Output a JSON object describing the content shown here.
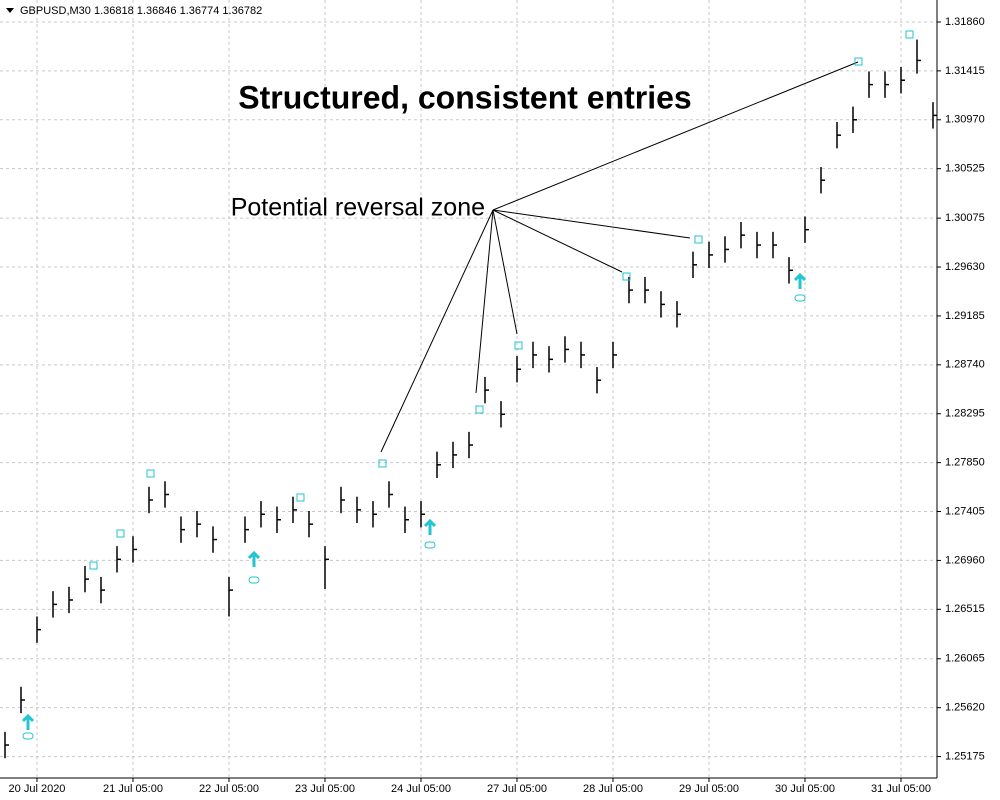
{
  "header": "GBPUSD,M30  1.36818 1.36846 1.36774 1.36782",
  "chart_data": {
    "type": "ohlc",
    "title": "Structured, consistent entries",
    "annotations": [
      "Potential reversal zone"
    ],
    "color": "#000000",
    "grid": true,
    "ylim": [
      1.2498,
      1.3206
    ],
    "yticks": [
      {
        "value": 1.3186,
        "label": "1.31860"
      },
      1.31415,
      {
        "value": 1.3097,
        "label": "1.30970"
      },
      1.30525,
      1.30075,
      {
        "value": 1.2963,
        "label": "1.29630"
      },
      1.29185,
      {
        "value": 1.2874,
        "label": "1.28740"
      },
      1.28295,
      {
        "value": 1.2785,
        "label": "1.27850"
      },
      1.27405,
      {
        "value": 1.2696,
        "label": "1.26960"
      },
      1.26515,
      1.26065,
      {
        "value": 1.2562,
        "label": "1.25620"
      },
      1.25175
    ],
    "categories": [
      null,
      null,
      "20 Jul 2020",
      null,
      null,
      null,
      null,
      null,
      "21 Jul 05:00",
      null,
      null,
      null,
      null,
      null,
      "22 Jul 05:00",
      null,
      null,
      null,
      null,
      null,
      "23 Jul 05:00",
      null,
      null,
      null,
      null,
      null,
      "24 Jul 05:00",
      null,
      null,
      null,
      null,
      null,
      "27 Jul 05:00",
      null,
      null,
      null,
      null,
      null,
      "28 Jul 05:00",
      null,
      null,
      null,
      null,
      null,
      "29 Jul 05:00",
      null,
      null,
      null,
      null,
      null,
      "30 Jul 05:00",
      null,
      null,
      null,
      null,
      null,
      "31 Jul 05:00",
      null,
      null
    ],
    "high": [
      1.254,
      1.2581,
      1.2645,
      1.2668,
      1.2672,
      1.2691,
      1.2681,
      1.2709,
      1.2718,
      1.2763,
      1.2768,
      1.2736,
      1.2741,
      1.2727,
      1.2681,
      1.2736,
      1.275,
      1.2745,
      1.2754,
      1.2741,
      1.2709,
      1.2763,
      1.2754,
      1.275,
      1.2768,
      1.2745,
      1.275,
      1.2795,
      1.2804,
      1.2813,
      1.2863,
      1.2841,
      1.2882,
      1.2895,
      1.2891,
      1.29,
      1.2895,
      1.2872,
      1.2895,
      1.2954,
      1.2954,
      1.2941,
      1.2932,
      1.2977,
      1.2986,
      1.2991,
      1.3004,
      1.2995,
      1.2995,
      1.2972,
      1.3009,
      1.3054,
      1.3095,
      1.3109,
      1.3141,
      1.3141,
      1.3145,
      1.317,
      1.3113
    ],
    "low": [
      1.2516,
      1.2557,
      1.2621,
      1.2644,
      1.2648,
      1.2667,
      1.2657,
      1.2685,
      1.2694,
      1.2739,
      1.2744,
      1.2712,
      1.2717,
      1.2703,
      1.2645,
      1.2712,
      1.2726,
      1.2721,
      1.273,
      1.2717,
      1.267,
      1.2739,
      1.273,
      1.2726,
      1.2744,
      1.2721,
      1.2726,
      1.2771,
      1.278,
      1.2789,
      1.2839,
      1.2817,
      1.2858,
      1.2871,
      1.2867,
      1.2876,
      1.2871,
      1.2848,
      1.2871,
      1.293,
      1.293,
      1.2917,
      1.2908,
      1.2953,
      1.2962,
      1.2967,
      1.298,
      1.2971,
      1.2971,
      1.2948,
      1.2985,
      1.303,
      1.3071,
      1.3085,
      1.3117,
      1.3117,
      1.3121,
      1.3139,
      1.3089
    ],
    "close": [
      1.2528,
      1.2569,
      1.2633,
      1.2656,
      1.266,
      1.2679,
      1.2669,
      1.2697,
      1.2706,
      1.2751,
      1.2756,
      1.2724,
      1.2729,
      1.2715,
      1.2669,
      1.2724,
      1.2738,
      1.2733,
      1.2742,
      1.2729,
      1.2697,
      1.2751,
      1.2742,
      1.2738,
      1.2756,
      1.2733,
      1.2738,
      1.2783,
      1.2792,
      1.2801,
      1.2851,
      1.2829,
      1.287,
      1.2883,
      1.2879,
      1.2888,
      1.2883,
      1.286,
      1.2883,
      1.2942,
      1.2942,
      1.2929,
      1.292,
      1.2965,
      1.2974,
      1.2979,
      1.2992,
      1.2983,
      1.2983,
      1.296,
      1.2997,
      1.3042,
      1.3083,
      1.3097,
      1.3129,
      1.3129,
      1.3133,
      1.3151,
      1.3101
    ]
  }
}
